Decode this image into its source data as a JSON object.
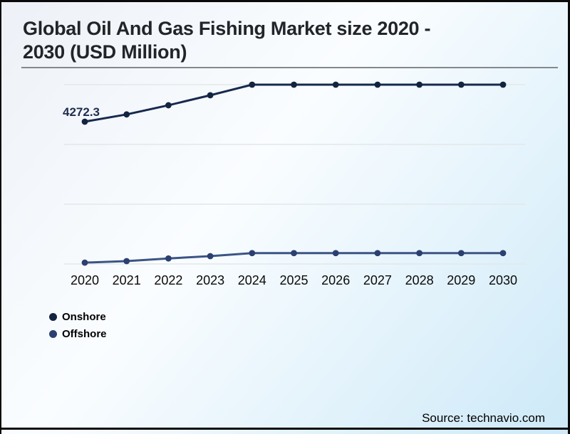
{
  "header": {
    "title": "Global Oil And Gas Fishing Market size 2020 - 2030 (USD Million)"
  },
  "footer": {
    "source": "Source: technavio.com"
  },
  "colors": {
    "background_top_left": "#edf1f7",
    "background_bottom_right": "#cde9f8",
    "border": "#0a0a0a",
    "title_text": "#212529",
    "title_underline": "#84888c",
    "gridline": "#e3e7ea",
    "onshore_line": "#16294e",
    "offshore_line": "#3c5485",
    "data_label_text": "#1e2c50"
  },
  "chart_data": {
    "type": "line",
    "title": "Global Oil And Gas Fishing Market size 2020 - 2030 (USD Million)",
    "categories": [
      "2020",
      "2021",
      "2022",
      "2023",
      "2024",
      "2025",
      "2026",
      "2027",
      "2028",
      "2029",
      "2030"
    ],
    "series": [
      {
        "name": "Onshore",
        "color": "#16294e",
        "marker_color": "#132440",
        "values": [
          4272.3,
          4490,
          4765,
          5065,
          5383,
          5383,
          5383,
          5383,
          5383,
          5383,
          5383
        ],
        "data_label": {
          "index": 0,
          "text": "4272.3"
        }
      },
      {
        "name": "Offshore",
        "color": "#3c5485",
        "marker_color": "#2b4070",
        "values": [
          40,
          85,
          165,
          235,
          325,
          325,
          325,
          325,
          325,
          325,
          325
        ]
      }
    ],
    "xlabel": "",
    "ylabel": "",
    "ylim": [
      0,
      5383
    ],
    "grid": true,
    "gridline_count": 4,
    "y_axis_labels_visible": false,
    "legend_position": "bottom-left"
  }
}
